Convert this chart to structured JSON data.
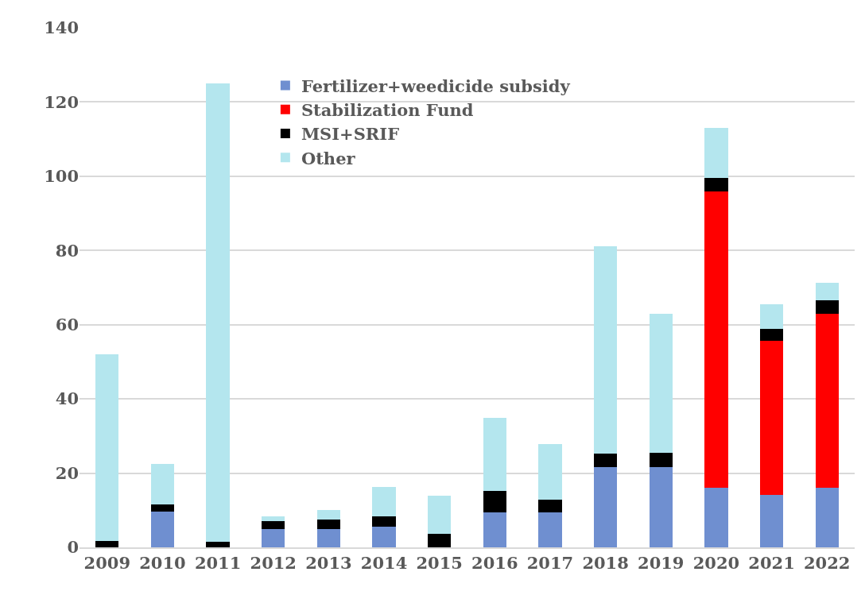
{
  "chart_data": {
    "type": "bar",
    "stacked": true,
    "categories": [
      "2009",
      "2010",
      "2011",
      "2012",
      "2013",
      "2014",
      "2015",
      "2016",
      "2017",
      "2018",
      "2019",
      "2020",
      "2021",
      "2022"
    ],
    "series": [
      {
        "name": "Fertilizer+weedicide subsidy",
        "color": "#6f8fd0",
        "values": [
          0,
          9.7,
          0,
          5.0,
          4.9,
          5.6,
          0,
          9.5,
          9.5,
          21.7,
          21.7,
          16.0,
          14.2,
          16.0
        ]
      },
      {
        "name": "Stabilization Fund",
        "color": "#ff0000",
        "values": [
          0,
          0,
          0,
          0,
          0,
          0,
          0,
          0,
          0,
          0,
          0,
          79.8,
          41.4,
          46.9
        ]
      },
      {
        "name": "MSI+SRIF",
        "color": "#000000",
        "values": [
          1.7,
          1.9,
          1.5,
          2.1,
          2.6,
          2.8,
          3.7,
          5.7,
          3.4,
          3.6,
          3.8,
          3.8,
          3.3,
          3.6
        ]
      },
      {
        "name": "Other",
        "color": "#b4e6ee",
        "values": [
          50.3,
          10.8,
          123.5,
          1.2,
          2.5,
          7.8,
          10.3,
          19.8,
          14.9,
          55.8,
          37.5,
          13.4,
          6.5,
          4.7
        ]
      }
    ],
    "ylim": [
      0,
      140
    ],
    "yticks": [
      0,
      20,
      40,
      60,
      80,
      100,
      120,
      140
    ],
    "grid": "y",
    "legend": "top"
  }
}
